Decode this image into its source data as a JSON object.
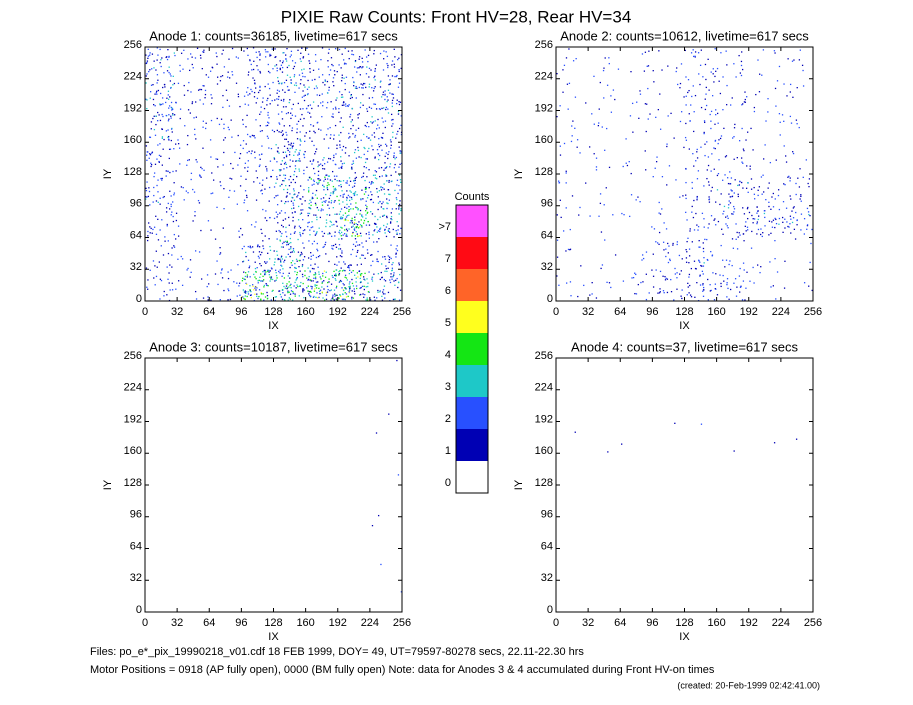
{
  "title": "PIXIE Raw Counts:  Front HV=28, Rear HV=34",
  "colorbar": {
    "title": "Counts",
    "levels": [
      "0",
      "1",
      "2",
      "3",
      "4",
      "5",
      "6",
      "7",
      ">7"
    ],
    "colors": [
      "#ffffff",
      "#0000b4",
      "#2850ff",
      "#1ec8c8",
      "#14e614",
      "#ffff1e",
      "#ff6428",
      "#ff0a14",
      "#ff50ff"
    ]
  },
  "chart_data": [
    {
      "type": "heatmap",
      "title": "Anode 1: counts=36185, livetime=617 secs",
      "xlabel": "IX",
      "ylabel": "IY",
      "xlim": [
        0,
        256
      ],
      "ylim": [
        0,
        256
      ],
      "xticks": [
        0,
        32,
        64,
        96,
        128,
        160,
        192,
        224,
        256
      ],
      "yticks": [
        0,
        32,
        64,
        96,
        128,
        160,
        192,
        224,
        256
      ],
      "z": [
        [
          0.3,
          0.2,
          0.3,
          1.5,
          1.2,
          1.5,
          1.5,
          0.8
        ],
        [
          0.3,
          0.1,
          0.1,
          0.6,
          1.0,
          0.5,
          0.6,
          0.5
        ],
        [
          0.4,
          0.1,
          0.1,
          0.2,
          0.7,
          0.8,
          1.5,
          0.9
        ],
        [
          0.5,
          0.2,
          0.2,
          0.3,
          0.8,
          1.2,
          1.0,
          0.9
        ],
        [
          0.5,
          0.2,
          0.2,
          0.4,
          0.9,
          0.5,
          0.6,
          0.7
        ],
        [
          0.6,
          0.2,
          0.2,
          0.4,
          0.6,
          0.4,
          0.5,
          0.6
        ],
        [
          0.7,
          0.3,
          0.2,
          0.5,
          0.7,
          0.6,
          0.7,
          0.7
        ],
        [
          0.6,
          0.3,
          0.3,
          0.5,
          0.7,
          0.4,
          0.6,
          0.5
        ]
      ]
    },
    {
      "type": "heatmap",
      "title": "Anode 2: counts=10612, livetime=617 secs",
      "xlabel": "IX",
      "ylabel": "IY",
      "xlim": [
        0,
        256
      ],
      "ylim": [
        0,
        256
      ],
      "xticks": [
        0,
        32,
        64,
        96,
        128,
        160,
        192,
        224,
        256
      ],
      "yticks": [
        0,
        32,
        64,
        96,
        128,
        160,
        192,
        224,
        256
      ],
      "z": [
        [
          0.1,
          0.1,
          0.2,
          0.4,
          0.5,
          0.4,
          0.1,
          0.05
        ],
        [
          0.1,
          0.05,
          0.05,
          0.3,
          0.5,
          0.2,
          0.1,
          0.05
        ],
        [
          0.1,
          0.05,
          0.05,
          0.1,
          0.3,
          0.5,
          0.6,
          0.5
        ],
        [
          0.1,
          0.05,
          0.05,
          0.1,
          0.3,
          0.5,
          0.3,
          0.3
        ],
        [
          0.1,
          0.1,
          0.1,
          0.1,
          0.3,
          0.2,
          0.1,
          0.1
        ],
        [
          0.1,
          0.1,
          0.1,
          0.1,
          0.3,
          0.2,
          0.1,
          0.1
        ],
        [
          0.1,
          0.1,
          0.1,
          0.1,
          0.3,
          0.2,
          0.1,
          0.1
        ],
        [
          0.1,
          0.1,
          0.1,
          0.1,
          0.3,
          0.2,
          0.1,
          0.1
        ]
      ]
    },
    {
      "type": "heatmap",
      "title": "Anode 3: counts=10187, livetime=617 secs",
      "xlabel": "IX",
      "ylabel": "IY",
      "xlim": [
        0,
        256
      ],
      "ylim": [
        0,
        256
      ],
      "xticks": [
        0,
        32,
        64,
        96,
        128,
        160,
        192,
        224,
        256
      ],
      "yticks": [
        0,
        32,
        64,
        96,
        128,
        160,
        192,
        224,
        256
      ],
      "z": [
        [
          0,
          0,
          0,
          0,
          0,
          0,
          0,
          0.02
        ],
        [
          0,
          0,
          0,
          0,
          0,
          0,
          0,
          0.02
        ],
        [
          0,
          0,
          0,
          0,
          0,
          0,
          0,
          0.02
        ],
        [
          0,
          0,
          0,
          0,
          0,
          0,
          0,
          0.02
        ],
        [
          0,
          0,
          0,
          0,
          0,
          0,
          0,
          0.02
        ],
        [
          0,
          0,
          0,
          0,
          0,
          0,
          0,
          0.02
        ],
        [
          0,
          0,
          0,
          0,
          0,
          0,
          0,
          0.02
        ],
        [
          0,
          0,
          0,
          0,
          0,
          0,
          0,
          0.02
        ]
      ]
    },
    {
      "type": "heatmap",
      "title": "Anode 4: counts=37, livetime=617 secs",
      "xlabel": "IX",
      "ylabel": "IY",
      "xlim": [
        0,
        256
      ],
      "ylim": [
        0,
        256
      ],
      "xticks": [
        0,
        32,
        64,
        96,
        128,
        160,
        192,
        224,
        256
      ],
      "yticks": [
        0,
        32,
        64,
        96,
        128,
        160,
        192,
        224,
        256
      ],
      "z": [
        [
          0,
          0,
          0,
          0,
          0,
          0,
          0,
          0
        ],
        [
          0,
          0,
          0,
          0,
          0,
          0,
          0,
          0
        ],
        [
          0,
          0,
          0,
          0,
          0,
          0,
          0,
          0
        ],
        [
          0,
          0,
          0,
          0,
          0,
          0,
          0,
          0
        ],
        [
          0,
          0,
          0,
          0,
          0,
          0,
          0,
          0
        ],
        [
          0.02,
          0.02,
          0.02,
          0.02,
          0.02,
          0.02,
          0.02,
          0.02
        ],
        [
          0,
          0,
          0,
          0,
          0,
          0,
          0,
          0
        ],
        [
          0,
          0,
          0,
          0,
          0,
          0,
          0,
          0
        ]
      ]
    }
  ],
  "footer": [
    "Files: po_e*_pix_19990218_v01.cdf    18 FEB 1999, DOY= 49, UT=79597-80278 secs, 22.11-22.30 hrs",
    "Motor Positions = 0918 (AP fully open), 0000 (BM fully open)    Note: data for Anodes 3 & 4 accumulated during Front HV-on times",
    "(created: 20-Feb-1999 02:42:41.00)"
  ]
}
